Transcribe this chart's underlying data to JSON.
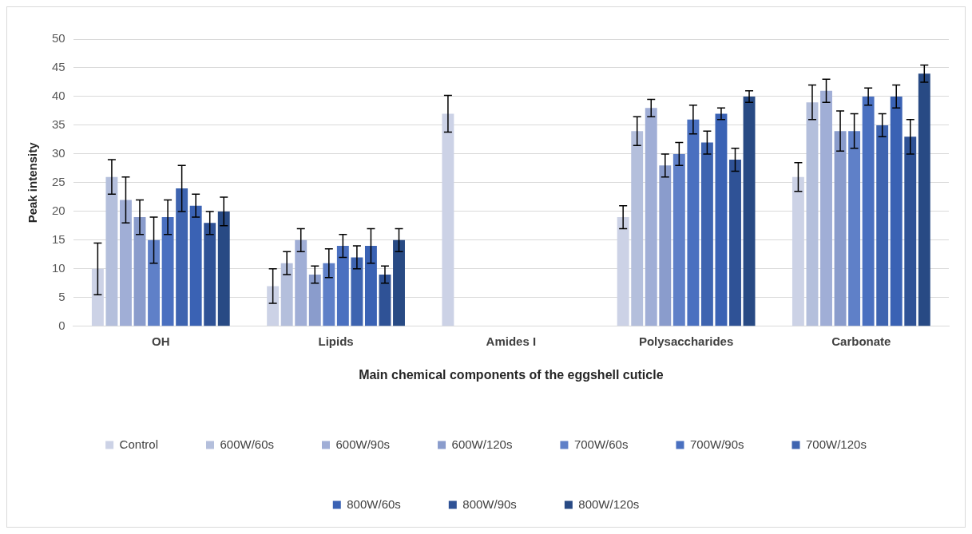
{
  "chart_data": {
    "type": "bar",
    "xlabel": "Main chemical components of the eggshell cuticle",
    "ylabel": "Peak intensity",
    "categories": [
      "OH",
      "Lipids",
      "Amides I",
      "Polysaccharides",
      "Carbonate"
    ],
    "ylim": [
      0,
      50
    ],
    "yticks": [
      0,
      5,
      10,
      15,
      20,
      25,
      30,
      35,
      40,
      45,
      50
    ],
    "grid": "y",
    "legend": "bottom",
    "series": [
      {
        "name": "Control",
        "color": "#ccd2e6",
        "values": [
          10,
          7,
          37,
          19,
          26
        ],
        "errors": [
          4.5,
          3,
          3.2,
          2,
          2.5
        ]
      },
      {
        "name": "600W/60s",
        "color": "#b4bfdc",
        "values": [
          26,
          11,
          null,
          34,
          39
        ],
        "errors": [
          3,
          2,
          null,
          2.5,
          3
        ]
      },
      {
        "name": "600W/90s",
        "color": "#a0aed6",
        "values": [
          22,
          15,
          null,
          38,
          41
        ],
        "errors": [
          4,
          2,
          null,
          1.5,
          2
        ]
      },
      {
        "name": "600W/120s",
        "color": "#8a9ccc",
        "values": [
          19,
          9,
          null,
          28,
          34
        ],
        "errors": [
          3,
          1.5,
          null,
          2,
          3.5
        ]
      },
      {
        "name": "700W/60s",
        "color": "#5f80c8",
        "values": [
          15,
          11,
          null,
          30,
          34
        ],
        "errors": [
          4,
          2.5,
          null,
          2,
          3
        ]
      },
      {
        "name": "700W/90s",
        "color": "#4a70c0",
        "values": [
          19,
          14,
          null,
          36,
          40
        ],
        "errors": [
          3,
          2,
          null,
          2.5,
          1.5
        ]
      },
      {
        "name": "700W/120s",
        "color": "#3e64b0",
        "values": [
          24,
          12,
          null,
          32,
          35
        ],
        "errors": [
          4,
          2,
          null,
          2,
          2
        ]
      },
      {
        "name": "800W/60s",
        "color": "#3a62b4",
        "values": [
          21,
          14,
          null,
          37,
          40
        ],
        "errors": [
          2,
          3,
          null,
          1,
          2
        ]
      },
      {
        "name": "800W/90s",
        "color": "#2f5296",
        "values": [
          18,
          9,
          null,
          29,
          33
        ],
        "errors": [
          2,
          1.5,
          null,
          2,
          3
        ]
      },
      {
        "name": "800W/120s",
        "color": "#284a84",
        "values": [
          20,
          15,
          null,
          40,
          44
        ],
        "errors": [
          2.5,
          2,
          null,
          1,
          1.5
        ]
      }
    ]
  }
}
